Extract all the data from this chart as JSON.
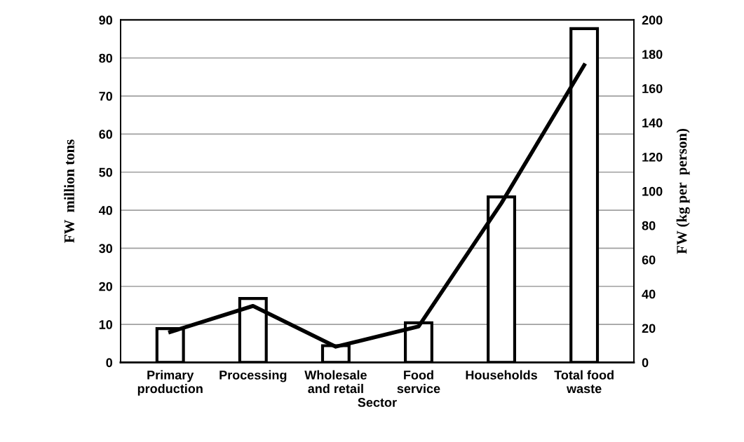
{
  "chart_data": {
    "type": "bar",
    "categories": [
      "Primary\nproduction",
      "Processing",
      "Wholesale\nand retail",
      "Food\nservice",
      "Households",
      "Total food\nwaste"
    ],
    "xlabel": "Sector",
    "ylabel": "FW  million tons",
    "y2label": "FW (kg per  person)",
    "series": [
      {
        "color": "#ffffff",
        "values": [
          8.9,
          16.8,
          4.4,
          10.4,
          43.5,
          87.7
        ]
      },
      {
        "type": "line",
        "axis": "y2",
        "color": "#000000",
        "values": [
          17.8,
          33,
          9.2,
          21,
          93,
          173.6
        ]
      }
    ],
    "ylim": [
      0,
      90
    ],
    "yticks": [
      0,
      10,
      20,
      30,
      40,
      50,
      60,
      70,
      80,
      90
    ],
    "y2lim": [
      0,
      200
    ],
    "y2ticks": [
      0,
      20,
      40,
      60,
      80,
      100,
      120,
      140,
      160,
      180,
      200
    ],
    "grid": "y",
    "marker": "none",
    "line_style": "solid",
    "legend": false
  }
}
